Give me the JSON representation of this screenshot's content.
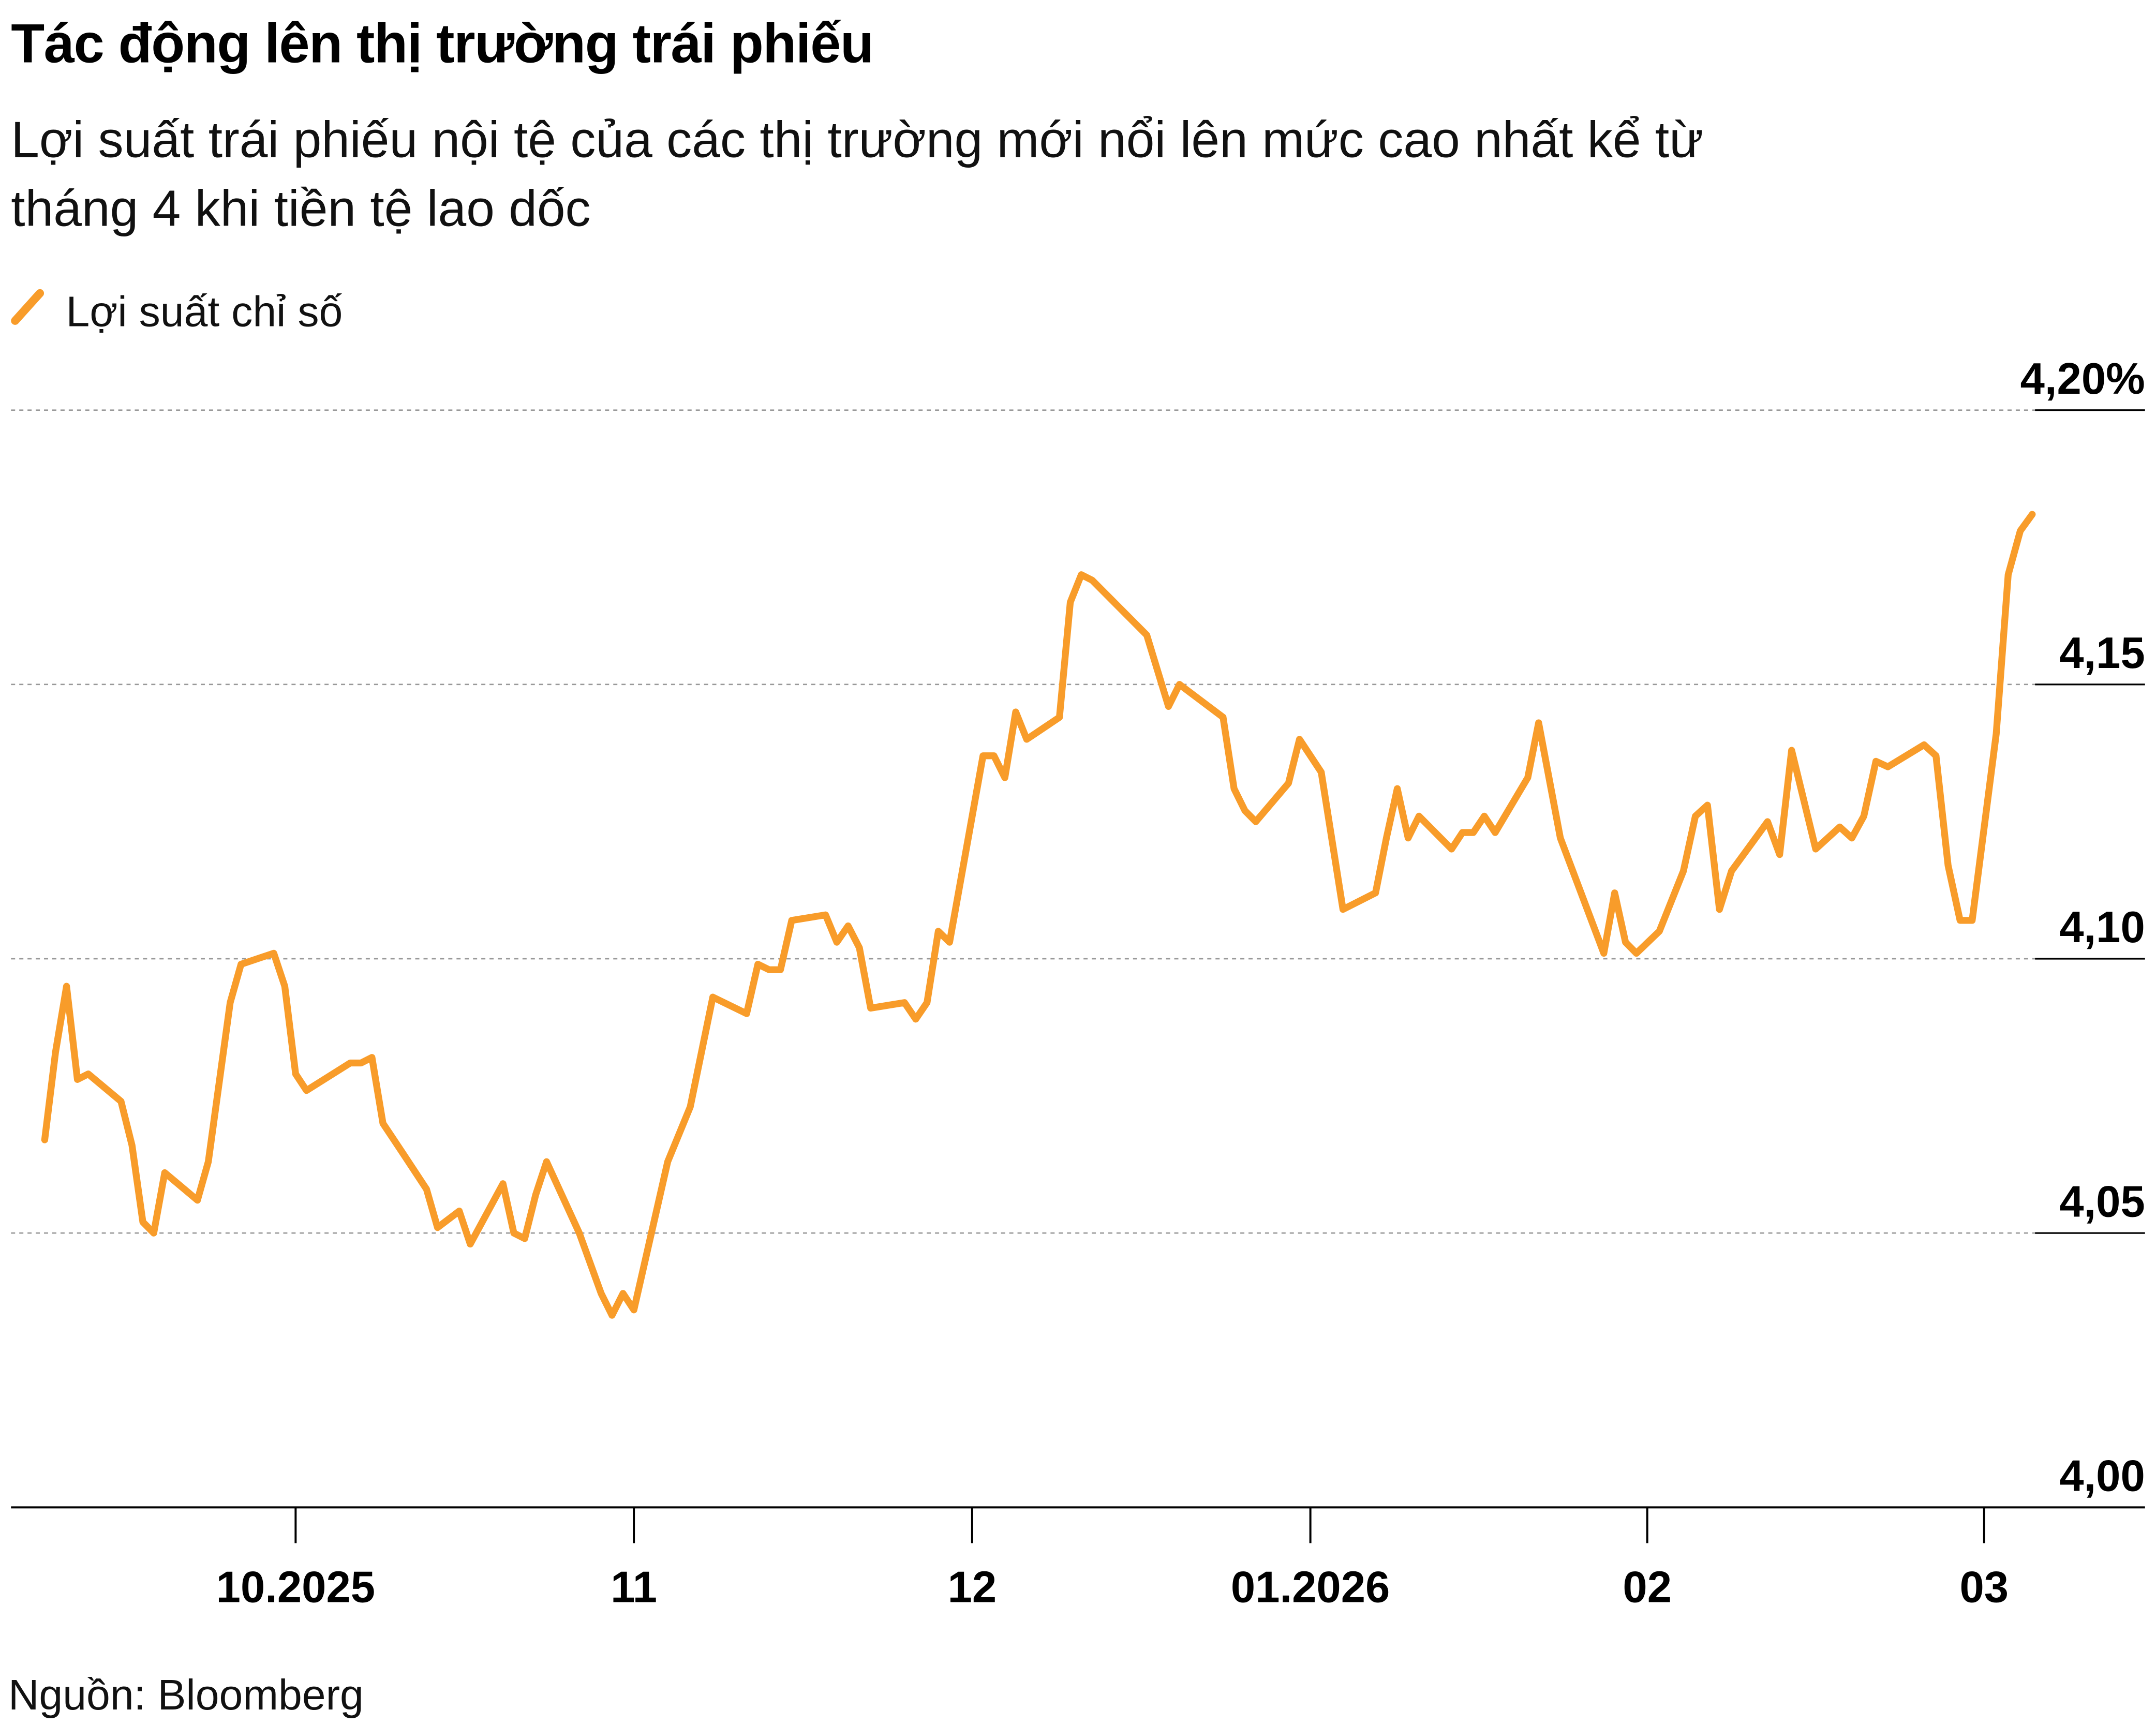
{
  "header": {
    "title": "Tác động lên thị trường trái phiếu",
    "subtitle_lines": [
      "Lợi suất trái phiếu nội tệ của các thị trường mới nổi lên mức cao nhất kể từ",
      "tháng 4 khi tiền tệ lao dốc"
    ]
  },
  "footer": {
    "source": "Nguồn: Bloomberg"
  },
  "colors": {
    "series": "#F89C2A",
    "grid": "#999999",
    "axis": "#000000"
  },
  "chart_data": {
    "type": "line",
    "title": "Tác động lên thị trường trái phiếu",
    "legend": {
      "position": "top-left",
      "entries": [
        "Lợi suất chỉ số"
      ]
    },
    "ylim": [
      4.0,
      4.2
    ],
    "y_ticks": [
      4.0,
      4.05,
      4.1,
      4.15,
      4.2
    ],
    "y_tick_labels": [
      "4,00",
      "4,05",
      "4,10",
      "4,15",
      "4,20%"
    ],
    "x_ticks": [
      "2025-10-01",
      "2025-11-01",
      "2025-12-01",
      "2026-01-01",
      "2026-02-01",
      "2026-03-01"
    ],
    "x_tick_labels": [
      "10.2025",
      "11",
      "12",
      "01.2026",
      "02",
      "03"
    ],
    "grid": "horizontal dashed",
    "series": [
      {
        "name": "Lợi suất chỉ số",
        "points": [
          [
            "2025-09-08",
            4.067
          ],
          [
            "2025-09-09",
            4.083
          ],
          [
            "2025-09-10",
            4.095
          ],
          [
            "2025-09-11",
            4.078
          ],
          [
            "2025-09-12",
            4.079
          ],
          [
            "2025-09-15",
            4.074
          ],
          [
            "2025-09-16",
            4.066
          ],
          [
            "2025-09-17",
            4.052
          ],
          [
            "2025-09-18",
            4.05
          ],
          [
            "2025-09-19",
            4.061
          ],
          [
            "2025-09-22",
            4.056
          ],
          [
            "2025-09-23",
            4.063
          ],
          [
            "2025-09-25",
            4.092
          ],
          [
            "2025-09-26",
            4.099
          ],
          [
            "2025-09-29",
            4.101
          ],
          [
            "2025-09-30",
            4.095
          ],
          [
            "2025-10-01",
            4.079
          ],
          [
            "2025-10-02",
            4.076
          ],
          [
            "2025-10-06",
            4.081
          ],
          [
            "2025-10-07",
            4.081
          ],
          [
            "2025-10-08",
            4.082
          ],
          [
            "2025-10-09",
            4.07
          ],
          [
            "2025-10-11",
            4.064
          ],
          [
            "2025-10-13",
            4.058
          ],
          [
            "2025-10-14",
            4.051
          ],
          [
            "2025-10-16",
            4.054
          ],
          [
            "2025-10-17",
            4.048
          ],
          [
            "2025-10-20",
            4.059
          ],
          [
            "2025-10-21",
            4.05
          ],
          [
            "2025-10-22",
            4.049
          ],
          [
            "2025-10-23",
            4.057
          ],
          [
            "2025-10-24",
            4.063
          ],
          [
            "2025-10-27",
            4.05
          ],
          [
            "2025-10-29",
            4.039
          ],
          [
            "2025-10-30",
            4.035
          ],
          [
            "2025-10-31",
            4.039
          ],
          [
            "2025-11-01",
            4.036
          ],
          [
            "2025-11-04",
            4.063
          ],
          [
            "2025-11-06",
            4.073
          ],
          [
            "2025-11-08",
            4.093
          ],
          [
            "2025-11-11",
            4.09
          ],
          [
            "2025-11-12",
            4.099
          ],
          [
            "2025-11-13",
            4.098
          ],
          [
            "2025-11-14",
            4.098
          ],
          [
            "2025-11-15",
            4.107
          ],
          [
            "2025-11-18",
            4.108
          ],
          [
            "2025-11-19",
            4.103
          ],
          [
            "2025-11-20",
            4.106
          ],
          [
            "2025-11-21",
            4.102
          ],
          [
            "2025-11-22",
            4.091
          ],
          [
            "2025-11-25",
            4.092
          ],
          [
            "2025-11-26",
            4.089
          ],
          [
            "2025-11-27",
            4.092
          ],
          [
            "2025-11-28",
            4.105
          ],
          [
            "2025-11-29",
            4.103
          ],
          [
            "2025-12-02",
            4.137
          ],
          [
            "2025-12-03",
            4.137
          ],
          [
            "2025-12-04",
            4.133
          ],
          [
            "2025-12-05",
            4.145
          ],
          [
            "2025-12-06",
            4.14
          ],
          [
            "2025-12-09",
            4.144
          ],
          [
            "2025-12-10",
            4.165
          ],
          [
            "2025-12-11",
            4.17
          ],
          [
            "2025-12-12",
            4.169
          ],
          [
            "2025-12-17",
            4.159
          ],
          [
            "2025-12-19",
            4.146
          ],
          [
            "2025-12-20",
            4.15
          ],
          [
            "2025-12-24",
            4.144
          ],
          [
            "2025-12-25",
            4.131
          ],
          [
            "2025-12-26",
            4.127
          ],
          [
            "2025-12-27",
            4.125
          ],
          [
            "2025-12-30",
            4.132
          ],
          [
            "2025-12-31",
            4.14
          ],
          [
            "2026-01-02",
            4.134
          ],
          [
            "2026-01-04",
            4.109
          ],
          [
            "2026-01-07",
            4.112
          ],
          [
            "2026-01-08",
            4.122
          ],
          [
            "2026-01-09",
            4.131
          ],
          [
            "2026-01-10",
            4.122
          ],
          [
            "2026-01-11",
            4.126
          ],
          [
            "2026-01-14",
            4.12
          ],
          [
            "2026-01-15",
            4.123
          ],
          [
            "2026-01-16",
            4.123
          ],
          [
            "2026-01-17",
            4.126
          ],
          [
            "2026-01-18",
            4.123
          ],
          [
            "2026-01-21",
            4.133
          ],
          [
            "2026-01-22",
            4.143
          ],
          [
            "2026-01-24",
            4.122
          ],
          [
            "2026-01-28",
            4.101
          ],
          [
            "2026-01-29",
            4.112
          ],
          [
            "2026-01-30",
            4.103
          ],
          [
            "2026-01-31",
            4.101
          ],
          [
            "2026-02-02",
            4.105
          ],
          [
            "2026-02-04",
            4.116
          ],
          [
            "2026-02-05",
            4.126
          ],
          [
            "2026-02-06",
            4.128
          ],
          [
            "2026-02-07",
            4.109
          ],
          [
            "2026-02-08",
            4.116
          ],
          [
            "2026-02-11",
            4.125
          ],
          [
            "2026-02-12",
            4.119
          ],
          [
            "2026-02-13",
            4.138
          ],
          [
            "2026-02-15",
            4.12
          ],
          [
            "2026-02-17",
            4.124
          ],
          [
            "2026-02-18",
            4.122
          ],
          [
            "2026-02-19",
            4.126
          ],
          [
            "2026-02-20",
            4.136
          ],
          [
            "2026-02-21",
            4.135
          ],
          [
            "2026-02-24",
            4.139
          ],
          [
            "2026-02-25",
            4.137
          ],
          [
            "2026-02-26",
            4.117
          ],
          [
            "2026-02-27",
            4.107
          ],
          [
            "2026-02-28",
            4.107
          ],
          [
            "2026-03-02",
            4.141
          ],
          [
            "2026-03-03",
            4.17
          ],
          [
            "2026-03-04",
            4.178
          ],
          [
            "2026-03-05",
            4.181
          ]
        ]
      }
    ]
  }
}
